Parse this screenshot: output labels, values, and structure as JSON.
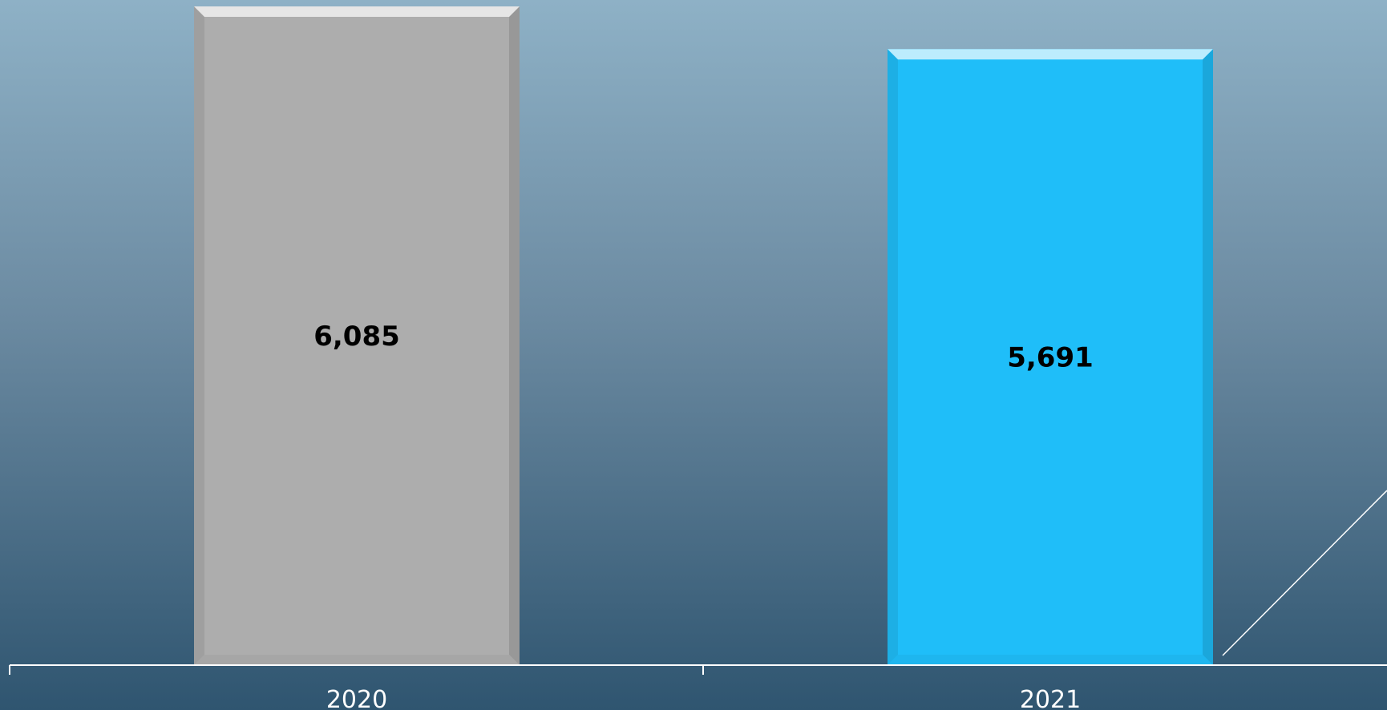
{
  "chart_data": {
    "type": "bar",
    "categories": [
      "2020",
      "2021"
    ],
    "values": [
      6085,
      5691
    ],
    "value_labels": [
      "6,085",
      "5,691"
    ],
    "colors": [
      "#adadad",
      "#1fbef9"
    ],
    "title": "",
    "xlabel": "",
    "ylabel": "",
    "ylim": [
      0,
      6085
    ],
    "grid": false,
    "legend": "none"
  }
}
